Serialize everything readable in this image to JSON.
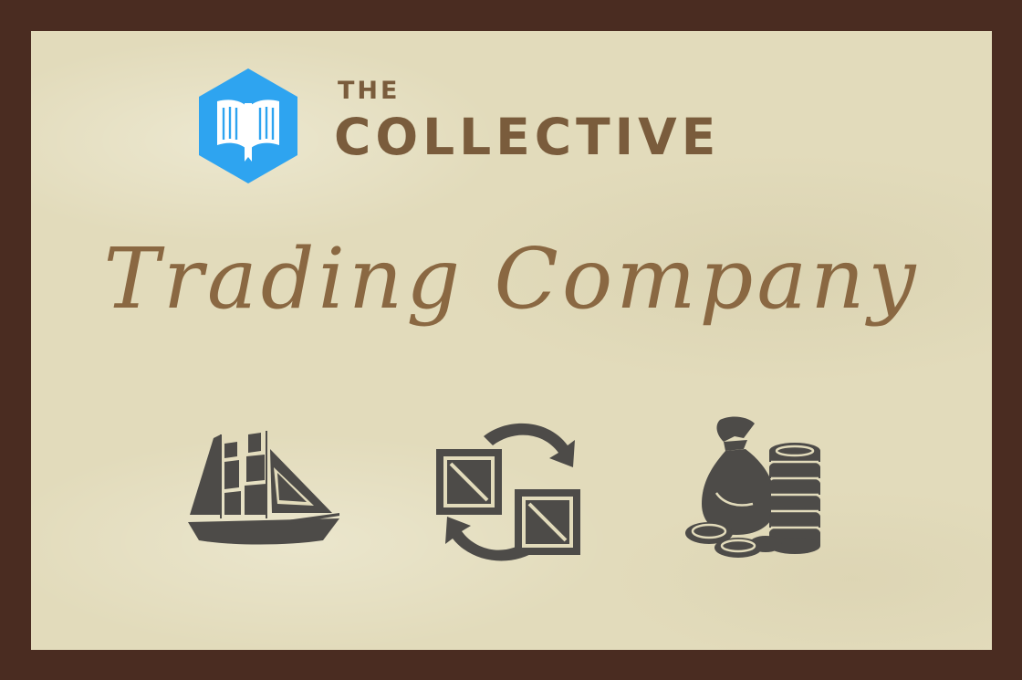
{
  "brand": {
    "the": "THE",
    "name": "COLLECTIVE"
  },
  "headline": {
    "text": "Trading Company"
  },
  "colors": {
    "border": "#4a2c21",
    "panel": "#e2dbbb",
    "brand_text": "#7a5c3c",
    "script_text": "#8a6842",
    "logo_blue": "#2ea4f0",
    "icon_gray": "#4d4b48"
  },
  "icons": [
    "book-logo-icon",
    "sailing-ship-icon",
    "exchange-crates-icon",
    "money-bag-coins-icon"
  ]
}
